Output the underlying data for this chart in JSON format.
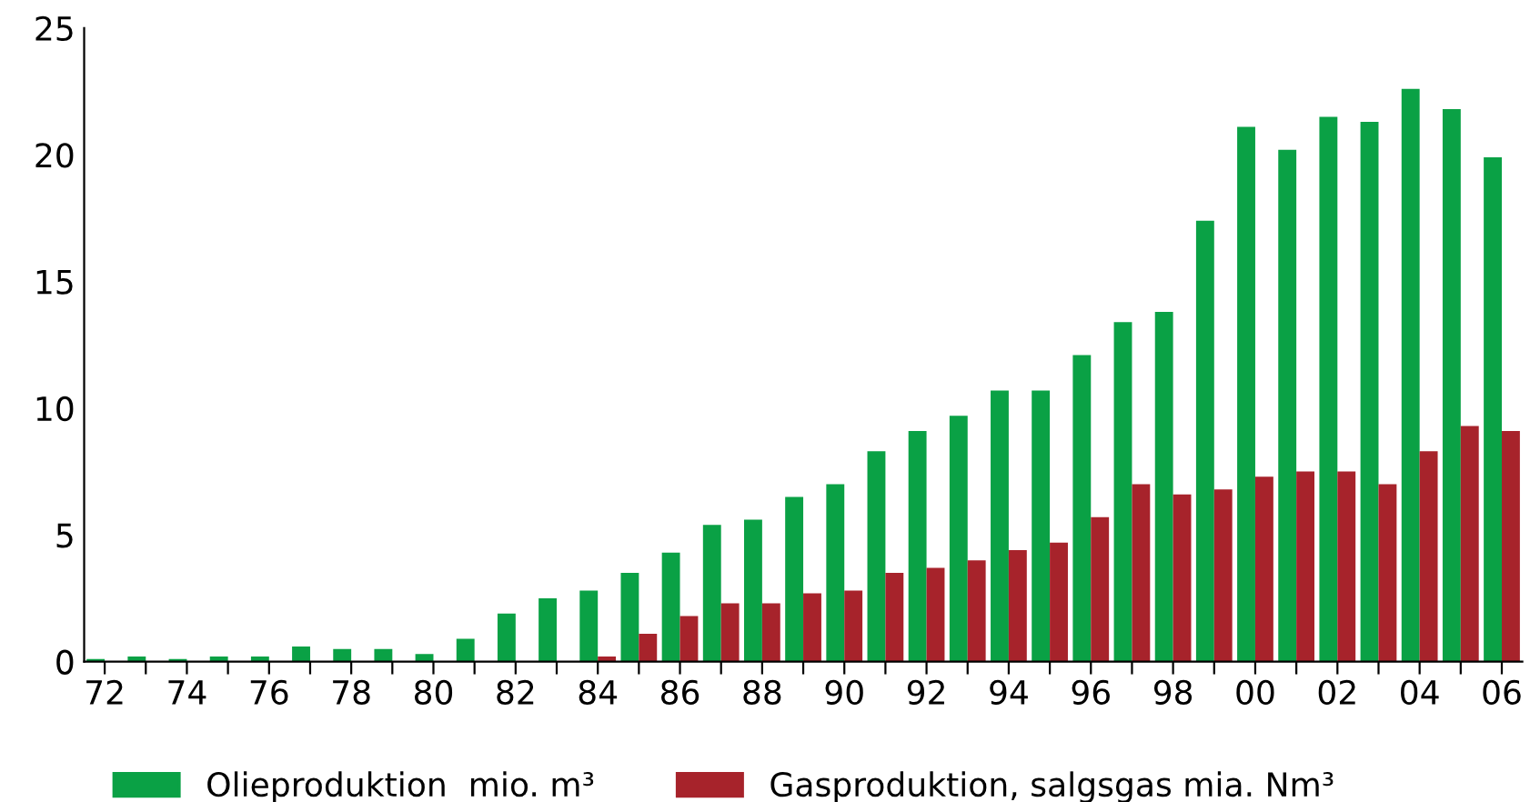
{
  "chart_data": {
    "type": "bar",
    "categories": [
      "72",
      null,
      "74",
      null,
      "76",
      null,
      "78",
      null,
      "80",
      null,
      "82",
      null,
      "84",
      null,
      "86",
      null,
      "88",
      null,
      "90",
      null,
      "92",
      null,
      "94",
      null,
      "96",
      null,
      "98",
      null,
      "00",
      null,
      "02",
      null,
      "04",
      null,
      "06"
    ],
    "series": [
      {
        "name": "Olieproduktion  mio. m³",
        "color": "#0aa145",
        "values": [
          0.1,
          0.2,
          0.1,
          0.2,
          0.2,
          0.6,
          0.5,
          0.5,
          0.3,
          0.9,
          1.9,
          2.5,
          2.8,
          3.5,
          4.3,
          5.4,
          5.6,
          6.5,
          7.0,
          8.3,
          9.1,
          9.7,
          10.7,
          10.7,
          12.1,
          13.4,
          13.8,
          17.4,
          21.1,
          20.2,
          21.5,
          21.3,
          22.6,
          21.8,
          19.9
        ]
      },
      {
        "name": "Gasproduktion, salgsgas mia. Nm³",
        "color": "#a7232b",
        "values": [
          null,
          null,
          null,
          null,
          null,
          null,
          null,
          null,
          null,
          null,
          null,
          null,
          0.2,
          1.1,
          1.8,
          2.3,
          2.3,
          2.7,
          2.8,
          3.5,
          3.7,
          4.0,
          4.4,
          4.7,
          5.7,
          7.0,
          6.6,
          6.8,
          7.3,
          7.5,
          7.5,
          7.0,
          8.3,
          9.3,
          9.1
        ]
      }
    ],
    "ylim": [
      0,
      25
    ],
    "yticks": [
      0,
      5,
      10,
      15,
      20,
      25
    ],
    "grid": false,
    "legend": "bottom"
  }
}
